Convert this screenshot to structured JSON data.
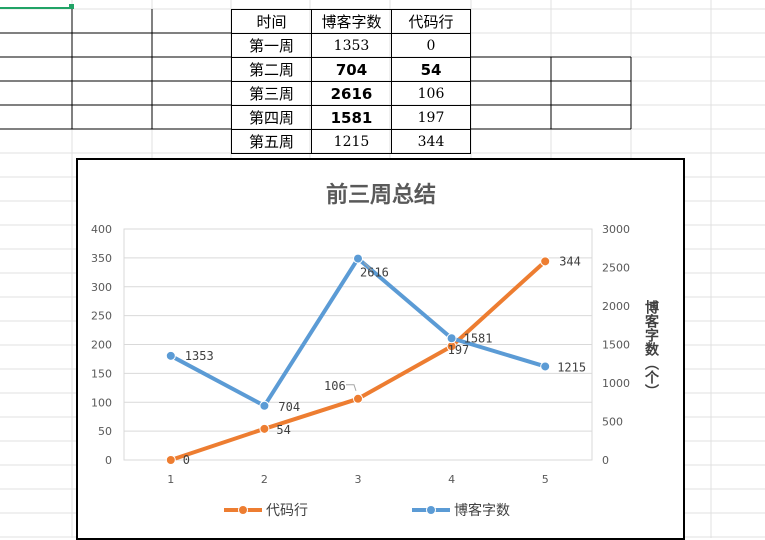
{
  "sheet": {
    "table": {
      "header": [
        "时间",
        "博客字数",
        "代码行"
      ],
      "rows": [
        [
          "第一周",
          "1353",
          "0"
        ],
        [
          "第二周",
          "704",
          "54"
        ],
        [
          "第三周",
          "2616",
          "106"
        ],
        [
          "第四周",
          "1581",
          "197"
        ],
        [
          "第五周",
          "1215",
          "344"
        ]
      ]
    }
  },
  "colors": {
    "code_lines": "#ed7d31",
    "blog_words": "#5b9bd5",
    "grid": "#d9d9d9",
    "axis_text": "#595959",
    "title": "#595959"
  },
  "chart_data": {
    "type": "line",
    "title": "前三周总结",
    "x": [
      1,
      2,
      3,
      4,
      5
    ],
    "series": [
      {
        "name": "代码行",
        "axis": "left",
        "values": [
          0,
          54,
          106,
          197,
          344
        ],
        "labels": [
          "0",
          "54",
          "106",
          "197",
          "344"
        ]
      },
      {
        "name": "博客字数",
        "axis": "right",
        "values": [
          1353,
          704,
          2616,
          1581,
          1215
        ],
        "labels": [
          "1353",
          "704",
          "2616",
          "1581",
          "1215"
        ]
      }
    ],
    "y_left": {
      "min": 0,
      "max": 400,
      "ticks": [
        "0",
        "50",
        "100",
        "150",
        "200",
        "250",
        "300",
        "350",
        "400"
      ]
    },
    "y_right": {
      "min": 0,
      "max": 3000,
      "ticks": [
        "0",
        "500",
        "1000",
        "1500",
        "2000",
        "2500",
        "3000"
      ],
      "label": "博客字数（个）"
    },
    "x_ticks": [
      "1",
      "2",
      "3",
      "4",
      "5"
    ],
    "legend": [
      "代码行",
      "博客字数"
    ],
    "legend_position": "bottom",
    "grid": true
  }
}
